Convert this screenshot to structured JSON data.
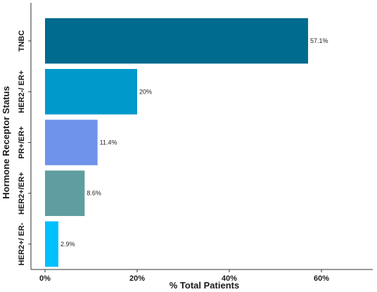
{
  "chart_data": {
    "type": "bar",
    "orientation": "horizontal",
    "categories": [
      "TNBC",
      "HER2-/ ER+",
      "PR+/ER+",
      "HER2+/ER+",
      "HER2+/ ER-"
    ],
    "values": [
      57.1,
      20,
      11.4,
      8.6,
      2.9
    ],
    "value_labels": [
      "57.1%",
      "20%",
      "11.4%",
      "8.6%",
      "2.9%"
    ],
    "colors": [
      "#006b8f",
      "#0099cc",
      "#6f93ea",
      "#5f9ea0",
      "#00bfff"
    ],
    "xlabel": "% Total Patients",
    "ylabel": "Hormone Receptor Status",
    "xlim": [
      0,
      72
    ],
    "xticks": [
      0,
      20,
      40,
      60
    ],
    "xtick_labels": [
      "0%",
      "20%",
      "40%",
      "60%"
    ],
    "grid": false
  }
}
